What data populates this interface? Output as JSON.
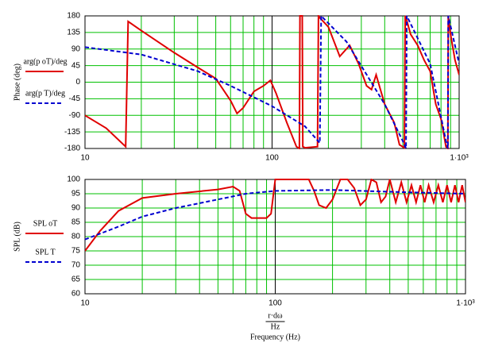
{
  "chart_data": [
    {
      "type": "line",
      "ylabel": "Phase (deg)",
      "log_x": true,
      "grid": true,
      "minor_grid": true,
      "xlim": [
        10,
        1000
      ],
      "xticks": [
        10,
        100,
        {
          "value": 1000,
          "label": "1·10³"
        }
      ],
      "ylim": [
        -180,
        180
      ],
      "yticks": [
        -180,
        -135,
        -90,
        -45,
        0,
        45,
        90,
        135,
        180
      ],
      "series": [
        {
          "name": "arg(p oT)/deg",
          "color": "#e00000",
          "dash": false,
          "x": [
            10,
            13,
            16.5,
            17,
            20,
            30,
            40,
            50,
            60,
            65,
            70,
            80,
            90,
            98,
            105,
            120,
            135,
            140,
            141,
            145,
            146,
            150,
            175,
            177,
            180,
            200,
            230,
            260,
            290,
            320,
            340,
            360,
            400,
            450,
            480,
            510,
            515,
            520,
            550,
            600,
            650,
            700,
            750,
            800,
            850,
            870,
            875,
            900,
            950,
            1000
          ],
          "values": [
            -90,
            -125,
            -175,
            165,
            140,
            80,
            40,
            10,
            -50,
            -85,
            -70,
            -25,
            -10,
            5,
            -30,
            -110,
            -175,
            -180,
            180,
            180,
            -175,
            -178,
            -175,
            180,
            175,
            150,
            70,
            100,
            50,
            -10,
            -20,
            20,
            -60,
            -110,
            -170,
            -178,
            180,
            175,
            130,
            100,
            60,
            30,
            -60,
            -100,
            -175,
            -180,
            180,
            130,
            60,
            20
          ]
        },
        {
          "name": "arg(p T)/deg",
          "color": "#0000d0",
          "dash": true,
          "x": [
            10,
            20,
            40,
            60,
            100,
            150,
            180,
            183,
            250,
            400,
            500,
            520,
            525,
            700,
            850,
            870,
            875,
            1000
          ],
          "values": [
            95,
            75,
            30,
            -10,
            -65,
            -120,
            -165,
            180,
            110,
            -60,
            -160,
            -180,
            180,
            50,
            -160,
            -180,
            180,
            50
          ]
        }
      ]
    },
    {
      "type": "line",
      "ylabel": "SPL (dB)",
      "xlabel_top": "r·dω",
      "xlabel_bottom": "Hz",
      "xlabel": "Frequency (Hz)",
      "log_x": true,
      "grid": true,
      "minor_grid": true,
      "xlim": [
        10,
        1000
      ],
      "xticks": [
        10,
        100,
        {
          "value": 1000,
          "label": "1·10³"
        }
      ],
      "ylim": [
        60,
        100
      ],
      "yticks": [
        60,
        65,
        70,
        75,
        80,
        85,
        90,
        95,
        100
      ],
      "series": [
        {
          "name": "SPL oT",
          "color": "#e00000",
          "dash": false,
          "x": [
            10,
            12,
            15,
            20,
            30,
            50,
            60,
            65,
            70,
            75,
            90,
            95,
            100,
            150,
            160,
            170,
            185,
            200,
            220,
            240,
            260,
            280,
            300,
            320,
            340,
            360,
            380,
            400,
            430,
            460,
            490,
            520,
            550,
            580,
            610,
            640,
            680,
            720,
            760,
            800,
            840,
            880,
            920,
            960,
            1000
          ],
          "values": [
            75,
            82,
            89,
            93.5,
            95,
            96.5,
            97.5,
            96,
            88,
            86.5,
            86.5,
            88,
            100,
            100,
            96,
            91,
            90,
            93,
            100,
            100,
            97,
            91,
            93,
            100,
            99,
            92,
            94,
            100,
            92,
            99,
            92,
            98,
            92,
            98,
            92,
            98,
            92,
            98,
            92,
            98,
            92,
            98,
            92,
            98,
            92
          ]
        },
        {
          "name": "SPL T",
          "color": "#0000d0",
          "dash": true,
          "x": [
            10,
            15,
            20,
            30,
            50,
            70,
            100,
            200,
            500,
            1000
          ],
          "values": [
            79,
            83.5,
            87,
            90,
            93,
            95,
            96,
            96.3,
            95.5,
            95
          ]
        }
      ]
    }
  ]
}
